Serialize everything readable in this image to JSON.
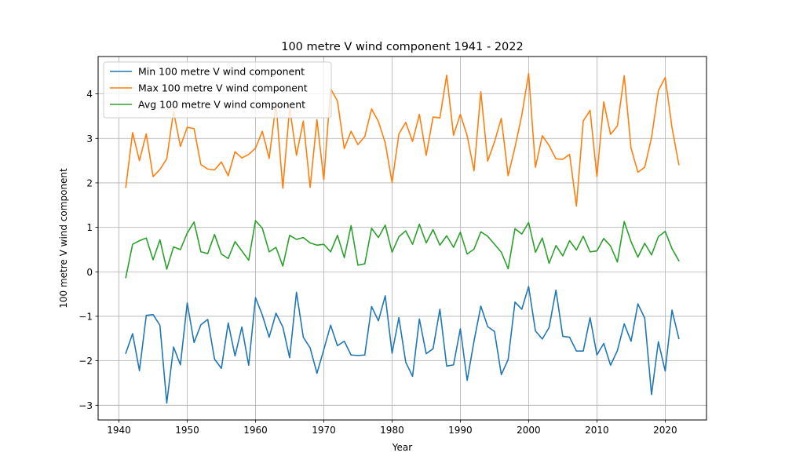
{
  "chart_data": {
    "type": "line",
    "title": "100 metre V wind component 1941 - 2022",
    "xlabel": "Year",
    "ylabel": "100 metre V wind component",
    "xlim": [
      1936.95,
      2026.05
    ],
    "ylim": [
      -3.33,
      4.84
    ],
    "xticks": [
      1940,
      1950,
      1960,
      1970,
      1980,
      1990,
      2000,
      2010,
      2020
    ],
    "yticks": [
      -3,
      -2,
      -1,
      0,
      1,
      2,
      3,
      4
    ],
    "grid": true,
    "legend_position": "top-left",
    "x": [
      1941,
      1942,
      1943,
      1944,
      1945,
      1946,
      1947,
      1948,
      1949,
      1950,
      1951,
      1952,
      1953,
      1954,
      1955,
      1956,
      1957,
      1958,
      1959,
      1960,
      1961,
      1962,
      1963,
      1964,
      1965,
      1966,
      1967,
      1968,
      1969,
      1970,
      1971,
      1972,
      1973,
      1974,
      1975,
      1976,
      1977,
      1978,
      1979,
      1980,
      1981,
      1982,
      1983,
      1984,
      1985,
      1986,
      1987,
      1988,
      1989,
      1990,
      1991,
      1992,
      1993,
      1994,
      1995,
      1996,
      1997,
      1998,
      1999,
      2000,
      2001,
      2002,
      2003,
      2004,
      2005,
      2006,
      2007,
      2008,
      2009,
      2010,
      2011,
      2012,
      2013,
      2014,
      2015,
      2016,
      2017,
      2018,
      2019,
      2020,
      2021,
      2022
    ],
    "series": [
      {
        "name": "Min 100 metre V wind component",
        "color": "#1f77b4",
        "values": [
          -1.83,
          -1.39,
          -2.22,
          -0.98,
          -0.96,
          -1.2,
          -2.95,
          -1.69,
          -2.09,
          -0.7,
          -1.59,
          -1.19,
          -1.07,
          -1.96,
          -2.17,
          -1.15,
          -1.89,
          -1.24,
          -2.1,
          -0.58,
          -0.97,
          -1.47,
          -0.93,
          -1.24,
          -1.93,
          -0.46,
          -1.47,
          -1.71,
          -2.28,
          -1.75,
          -1.2,
          -1.66,
          -1.56,
          -1.87,
          -1.88,
          -1.87,
          -0.78,
          -1.1,
          -0.54,
          -1.83,
          -1.03,
          -2.03,
          -2.35,
          -1.06,
          -1.84,
          -1.73,
          -0.84,
          -2.12,
          -2.09,
          -1.28,
          -2.44,
          -1.56,
          -0.77,
          -1.23,
          -1.34,
          -2.31,
          -1.97,
          -0.68,
          -0.84,
          -0.33,
          -1.33,
          -1.51,
          -1.25,
          -0.41,
          -1.45,
          -1.47,
          -1.78,
          -1.78,
          -1.03,
          -1.87,
          -1.61,
          -2.1,
          -1.77,
          -1.17,
          -1.56,
          -0.72,
          -1.04,
          -2.76,
          -1.57,
          -2.23,
          -0.86,
          -1.5
        ]
      },
      {
        "name": "Max 100 metre V wind component",
        "color": "#ff7f0e",
        "values": [
          1.9,
          3.13,
          2.5,
          3.1,
          2.14,
          2.3,
          2.54,
          3.61,
          2.82,
          3.25,
          3.22,
          2.41,
          2.31,
          2.29,
          2.47,
          2.16,
          2.7,
          2.56,
          2.64,
          2.78,
          3.16,
          2.55,
          3.78,
          1.88,
          3.69,
          2.62,
          3.39,
          1.9,
          3.42,
          2.07,
          4.12,
          3.84,
          2.77,
          3.16,
          2.86,
          3.04,
          3.66,
          3.38,
          2.9,
          2.01,
          3.1,
          3.36,
          2.93,
          3.54,
          2.62,
          3.48,
          3.46,
          4.42,
          3.07,
          3.54,
          3.06,
          2.27,
          4.05,
          2.49,
          2.92,
          3.45,
          2.16,
          2.8,
          3.52,
          4.46,
          2.35,
          3.06,
          2.84,
          2.54,
          2.53,
          2.64,
          1.48,
          3.39,
          3.63,
          2.14,
          3.82,
          3.09,
          3.28,
          4.41,
          2.78,
          2.24,
          2.35,
          3.02,
          4.07,
          4.37,
          3.24,
          2.41
        ]
      },
      {
        "name": "Avg 100 metre V wind component",
        "color": "#2ca02c",
        "values": [
          -0.13,
          0.62,
          0.7,
          0.76,
          0.27,
          0.72,
          0.06,
          0.56,
          0.5,
          0.87,
          1.12,
          0.45,
          0.41,
          0.84,
          0.4,
          0.3,
          0.68,
          0.47,
          0.26,
          1.15,
          0.98,
          0.45,
          0.55,
          0.13,
          0.82,
          0.73,
          0.77,
          0.65,
          0.6,
          0.62,
          0.45,
          0.82,
          0.32,
          1.04,
          0.15,
          0.18,
          0.98,
          0.77,
          1.05,
          0.44,
          0.79,
          0.92,
          0.62,
          1.07,
          0.65,
          0.95,
          0.6,
          0.81,
          0.55,
          0.89,
          0.4,
          0.51,
          0.9,
          0.8,
          0.62,
          0.44,
          0.07,
          0.97,
          0.85,
          1.11,
          0.44,
          0.76,
          0.19,
          0.59,
          0.36,
          0.7,
          0.49,
          0.8,
          0.45,
          0.47,
          0.75,
          0.58,
          0.22,
          1.13,
          0.68,
          0.33,
          0.64,
          0.38,
          0.79,
          0.91,
          0.52,
          0.25
        ]
      }
    ]
  }
}
